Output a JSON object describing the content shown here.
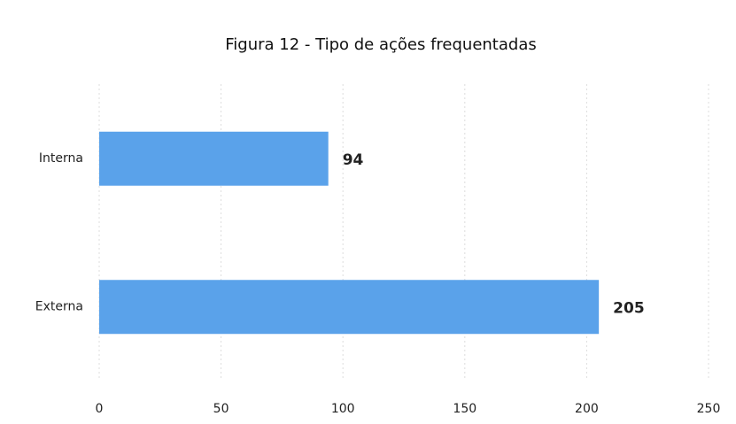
{
  "chart_data": {
    "type": "bar",
    "horizontal": true,
    "title": "Figura 12 - Tipo de ações frequentadas",
    "categories": [
      "Interna",
      "Externa"
    ],
    "values": [
      94,
      205
    ],
    "color": "#5aa2ea",
    "xlim": [
      0,
      250
    ],
    "xticks": [
      0,
      50,
      100,
      150,
      200,
      250
    ],
    "grid": true
  }
}
